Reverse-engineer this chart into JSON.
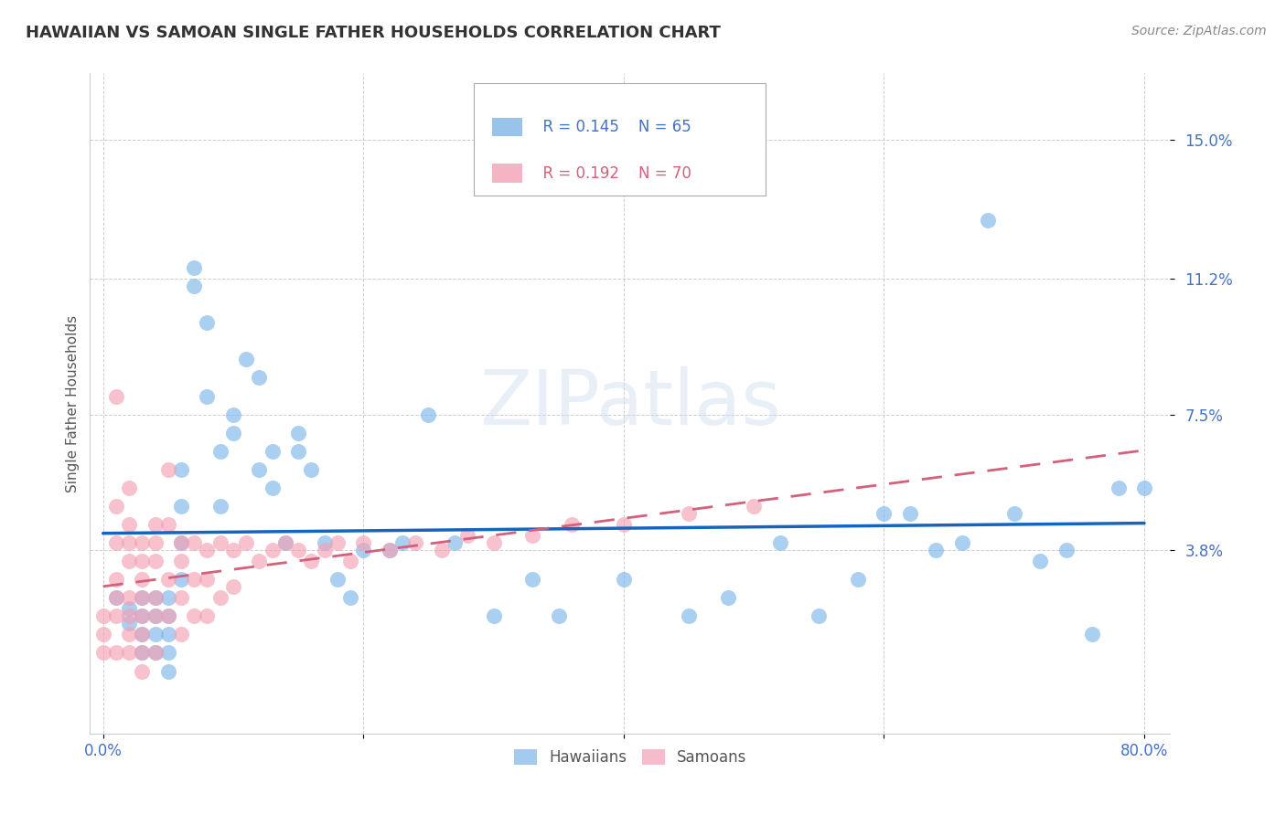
{
  "title": "HAWAIIAN VS SAMOAN SINGLE FATHER HOUSEHOLDS CORRELATION CHART",
  "source": "Source: ZipAtlas.com",
  "ylabel_label": "Single Father Households",
  "xlim": [
    -0.01,
    0.82
  ],
  "ylim": [
    -0.012,
    0.168
  ],
  "ytick_vals": [
    0.038,
    0.075,
    0.112,
    0.15
  ],
  "ytick_labels": [
    "3.8%",
    "7.5%",
    "11.2%",
    "15.0%"
  ],
  "xtick_vals": [
    0.0,
    0.2,
    0.4,
    0.6,
    0.8
  ],
  "xtick_labels": [
    "0.0%",
    "",
    "",
    "",
    "80.0%"
  ],
  "hawaiian_color": "#7EB6E8",
  "samoan_color": "#F4A0B5",
  "hawaiian_line_color": "#1565C0",
  "samoan_line_color": "#D4607A",
  "legend_R_hawaiian": "R = 0.145",
  "legend_N_hawaiian": "N = 65",
  "legend_R_samoan": "R = 0.192",
  "legend_N_samoan": "N = 70",
  "background_color": "#FFFFFF",
  "grid_color": "#BBBBBB",
  "title_color": "#333333",
  "axis_tick_color": "#4472C4",
  "watermark": "ZIPatlas",
  "hawaiian_x": [
    0.01,
    0.02,
    0.02,
    0.03,
    0.03,
    0.03,
    0.03,
    0.04,
    0.04,
    0.04,
    0.04,
    0.05,
    0.05,
    0.05,
    0.05,
    0.05,
    0.06,
    0.06,
    0.06,
    0.06,
    0.07,
    0.07,
    0.08,
    0.08,
    0.09,
    0.09,
    0.1,
    0.1,
    0.11,
    0.12,
    0.12,
    0.13,
    0.13,
    0.14,
    0.15,
    0.15,
    0.16,
    0.17,
    0.18,
    0.19,
    0.2,
    0.22,
    0.23,
    0.25,
    0.27,
    0.3,
    0.33,
    0.35,
    0.4,
    0.45,
    0.48,
    0.52,
    0.55,
    0.58,
    0.6,
    0.62,
    0.64,
    0.66,
    0.68,
    0.7,
    0.72,
    0.74,
    0.76,
    0.78,
    0.8
  ],
  "hawaiian_y": [
    0.025,
    0.022,
    0.018,
    0.025,
    0.02,
    0.015,
    0.01,
    0.025,
    0.02,
    0.015,
    0.01,
    0.025,
    0.02,
    0.015,
    0.01,
    0.005,
    0.06,
    0.05,
    0.04,
    0.03,
    0.115,
    0.11,
    0.1,
    0.08,
    0.065,
    0.05,
    0.075,
    0.07,
    0.09,
    0.085,
    0.06,
    0.065,
    0.055,
    0.04,
    0.07,
    0.065,
    0.06,
    0.04,
    0.03,
    0.025,
    0.038,
    0.038,
    0.04,
    0.075,
    0.04,
    0.02,
    0.03,
    0.02,
    0.03,
    0.02,
    0.025,
    0.04,
    0.02,
    0.03,
    0.048,
    0.048,
    0.038,
    0.04,
    0.128,
    0.048,
    0.035,
    0.038,
    0.015,
    0.055,
    0.055
  ],
  "samoan_x": [
    0.0,
    0.0,
    0.0,
    0.01,
    0.01,
    0.01,
    0.01,
    0.01,
    0.01,
    0.01,
    0.02,
    0.02,
    0.02,
    0.02,
    0.02,
    0.02,
    0.02,
    0.02,
    0.03,
    0.03,
    0.03,
    0.03,
    0.03,
    0.03,
    0.03,
    0.03,
    0.04,
    0.04,
    0.04,
    0.04,
    0.04,
    0.04,
    0.05,
    0.05,
    0.05,
    0.05,
    0.06,
    0.06,
    0.06,
    0.06,
    0.07,
    0.07,
    0.07,
    0.08,
    0.08,
    0.08,
    0.09,
    0.09,
    0.1,
    0.1,
    0.11,
    0.12,
    0.13,
    0.14,
    0.15,
    0.16,
    0.17,
    0.18,
    0.19,
    0.2,
    0.22,
    0.24,
    0.26,
    0.28,
    0.3,
    0.33,
    0.36,
    0.4,
    0.45,
    0.5
  ],
  "samoan_y": [
    0.02,
    0.015,
    0.01,
    0.08,
    0.05,
    0.04,
    0.03,
    0.025,
    0.02,
    0.01,
    0.055,
    0.045,
    0.04,
    0.035,
    0.025,
    0.02,
    0.015,
    0.01,
    0.04,
    0.035,
    0.03,
    0.025,
    0.02,
    0.015,
    0.01,
    0.005,
    0.045,
    0.04,
    0.035,
    0.025,
    0.02,
    0.01,
    0.06,
    0.045,
    0.03,
    0.02,
    0.04,
    0.035,
    0.025,
    0.015,
    0.04,
    0.03,
    0.02,
    0.038,
    0.03,
    0.02,
    0.04,
    0.025,
    0.038,
    0.028,
    0.04,
    0.035,
    0.038,
    0.04,
    0.038,
    0.035,
    0.038,
    0.04,
    0.035,
    0.04,
    0.038,
    0.04,
    0.038,
    0.042,
    0.04,
    0.042,
    0.045,
    0.045,
    0.048,
    0.05
  ]
}
